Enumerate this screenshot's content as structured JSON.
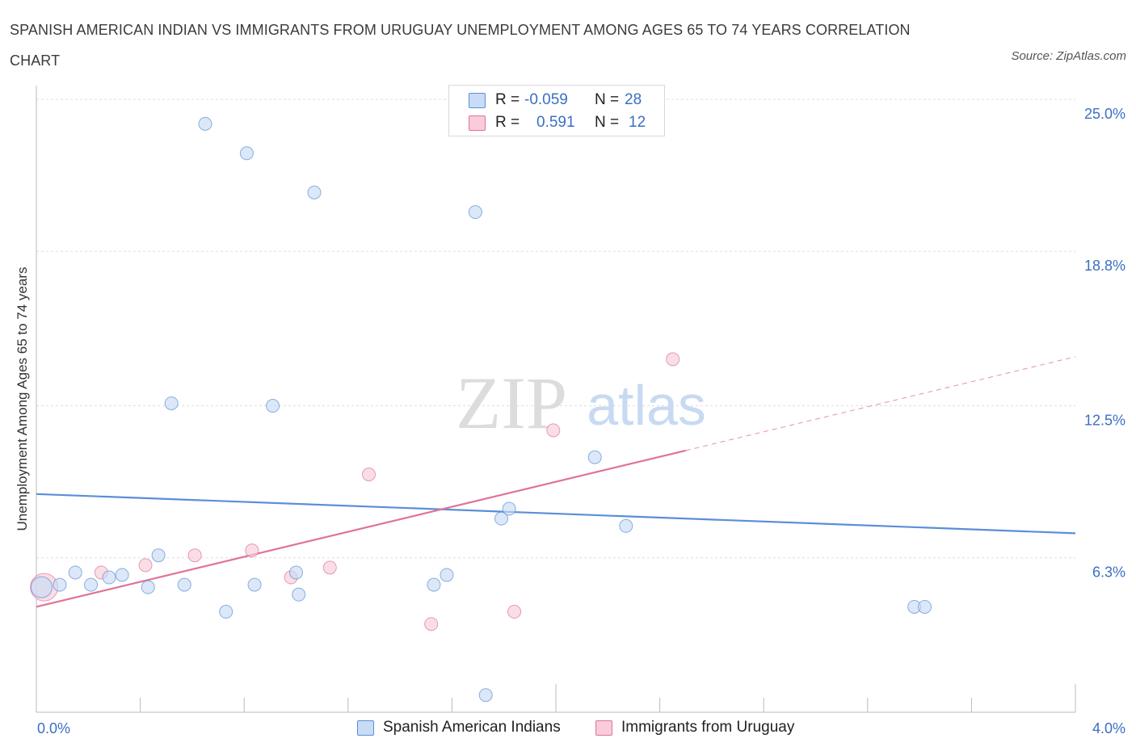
{
  "title": "SPANISH AMERICAN INDIAN VS IMMIGRANTS FROM URUGUAY UNEMPLOYMENT AMONG AGES 65 TO 74 YEARS CORRELATION CHART",
  "source": "Source: ZipAtlas.com",
  "watermark": {
    "zip": "ZIP",
    "atlas": "atlas"
  },
  "legend": {
    "rows": [
      {
        "r_label": "R =",
        "r_value": "-0.059",
        "n_label": "N =",
        "n_value": "28"
      },
      {
        "r_label": "R =",
        "r_value": "0.591",
        "n_label": "N =",
        "n_value": "12"
      }
    ]
  },
  "chart_data": {
    "type": "scatter",
    "title": "SPANISH AMERICAN INDIAN VS IMMIGRANTS FROM URUGUAY UNEMPLOYMENT AMONG AGES 65 TO 74 YEARS CORRELATION CHART",
    "xlabel": "",
    "ylabel": "Unemployment Among Ages 65 to 74 years",
    "xlim": [
      0,
      4.0
    ],
    "ylim": [
      0,
      25.0
    ],
    "x_tick_labels": [
      "0.0%",
      "4.0%"
    ],
    "y_ticks": [
      6.3,
      12.5,
      18.8,
      25.0
    ],
    "y_tick_labels": [
      "6.3%",
      "12.5%",
      "18.8%",
      "25.0%"
    ],
    "grid": true,
    "legend_position": "bottom",
    "series": [
      {
        "name": "Spanish American Indians",
        "color": "#5b8ed8",
        "fill": "#c9dcf5",
        "r": -0.059,
        "n": 28,
        "points": [
          {
            "x": 0.02,
            "y": 5.1
          },
          {
            "x": 0.09,
            "y": 5.2
          },
          {
            "x": 0.15,
            "y": 5.7
          },
          {
            "x": 0.21,
            "y": 5.2
          },
          {
            "x": 0.28,
            "y": 5.5
          },
          {
            "x": 0.33,
            "y": 5.6
          },
          {
            "x": 0.43,
            "y": 5.1
          },
          {
            "x": 0.47,
            "y": 6.4
          },
          {
            "x": 0.52,
            "y": 12.6
          },
          {
            "x": 0.57,
            "y": 5.2
          },
          {
            "x": 0.65,
            "y": 24.0
          },
          {
            "x": 0.73,
            "y": 4.1
          },
          {
            "x": 0.81,
            "y": 22.8
          },
          {
            "x": 0.84,
            "y": 5.2
          },
          {
            "x": 0.91,
            "y": 12.5
          },
          {
            "x": 1.0,
            "y": 5.7
          },
          {
            "x": 1.01,
            "y": 4.8
          },
          {
            "x": 1.07,
            "y": 21.2
          },
          {
            "x": 1.53,
            "y": 5.2
          },
          {
            "x": 1.58,
            "y": 5.6
          },
          {
            "x": 1.69,
            "y": 20.4
          },
          {
            "x": 1.73,
            "y": 0.7
          },
          {
            "x": 1.79,
            "y": 7.9
          },
          {
            "x": 1.82,
            "y": 8.3
          },
          {
            "x": 2.15,
            "y": 10.4
          },
          {
            "x": 2.27,
            "y": 7.6
          },
          {
            "x": 3.38,
            "y": 4.3
          },
          {
            "x": 3.42,
            "y": 4.3
          }
        ],
        "trend": {
          "x": [
            0.0,
            4.0
          ],
          "y": [
            8.9,
            7.3
          ],
          "solid_until": 4.0
        }
      },
      {
        "name": "Immigrants from Uruguay",
        "color": "#e07298",
        "fill": "#f8ccd9",
        "r": 0.591,
        "n": 12,
        "points": [
          {
            "x": 0.03,
            "y": 5.1
          },
          {
            "x": 0.25,
            "y": 5.7
          },
          {
            "x": 0.42,
            "y": 6.0
          },
          {
            "x": 0.61,
            "y": 6.4
          },
          {
            "x": 0.83,
            "y": 6.6
          },
          {
            "x": 0.98,
            "y": 5.5
          },
          {
            "x": 1.13,
            "y": 5.9
          },
          {
            "x": 1.28,
            "y": 9.7
          },
          {
            "x": 1.52,
            "y": 3.6
          },
          {
            "x": 1.84,
            "y": 4.1
          },
          {
            "x": 1.99,
            "y": 11.5
          },
          {
            "x": 2.45,
            "y": 14.4
          }
        ],
        "trend": {
          "x": [
            0.0,
            4.0
          ],
          "y": [
            4.3,
            14.5
          ],
          "solid_until": 2.5
        }
      }
    ]
  }
}
